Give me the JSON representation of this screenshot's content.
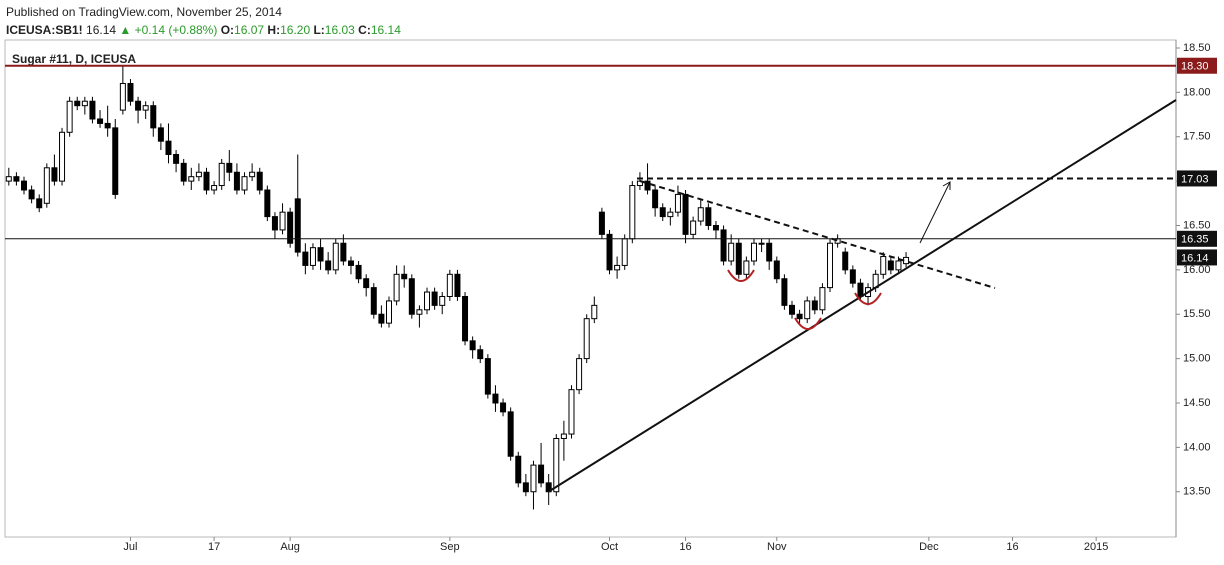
{
  "header": {
    "published": "Published on TradingView.com, November 25, 2014",
    "symbol": "ICEUSA:SB1!",
    "last": "16.14",
    "change": "+0.14 (+0.88%)",
    "open_key": "O:",
    "open": "16.07",
    "high_key": "H:",
    "high": "16.20",
    "low_key": "L:",
    "low": "16.03",
    "close_key": "C:",
    "close": "16.14"
  },
  "chart_data": {
    "type": "candlestick",
    "title": "Sugar #11, D, ICEUSA",
    "up_color": "#ffffff",
    "down_color": "#000000",
    "ylim": [
      12.99,
      18.59
    ],
    "yticks": [
      {
        "value": 13.5,
        "label": "13.50"
      },
      {
        "value": 14,
        "label": "14.00"
      },
      {
        "value": 14.5,
        "label": "14.50"
      },
      {
        "value": 15,
        "label": "15.00"
      },
      {
        "value": 15.5,
        "label": "15.50"
      },
      {
        "value": 16,
        "label": "16.00"
      },
      {
        "value": 16.5,
        "label": "16.50"
      },
      {
        "value": 17,
        "label": "17.00"
      },
      {
        "value": 17.5,
        "label": "17.50"
      },
      {
        "value": 18,
        "label": "18.00"
      },
      {
        "value": 18.5,
        "label": "18.50"
      }
    ],
    "levels": [
      {
        "value": 18.3,
        "label": "18.30",
        "color": "#8b1a1a",
        "line": "solid"
      },
      {
        "value": 17.03,
        "label": "17.03",
        "color": "#111111",
        "line": "dashed"
      },
      {
        "value": 16.35,
        "label": "16.35",
        "color": "#111111",
        "line": "solid"
      },
      {
        "value": 16.14,
        "label": "16.14",
        "color": "#111111",
        "line": "none"
      }
    ],
    "categories": [
      null,
      null,
      null,
      null,
      null,
      null,
      null,
      null,
      null,
      null,
      null,
      null,
      null,
      null,
      null,
      null,
      "Jul",
      null,
      null,
      null,
      null,
      null,
      null,
      null,
      null,
      null,
      null,
      "17",
      null,
      null,
      null,
      null,
      null,
      null,
      null,
      null,
      null,
      "Aug",
      null,
      null,
      null,
      null,
      null,
      null,
      null,
      null,
      null,
      null,
      null,
      null,
      null,
      null,
      null,
      null,
      null,
      null,
      null,
      null,
      "Sep",
      null,
      null,
      null,
      null,
      null,
      null,
      null,
      null,
      null,
      null,
      null,
      null,
      null,
      null,
      null,
      null,
      null,
      null,
      null,
      null,
      "Oct",
      null,
      null,
      null,
      null,
      null,
      null,
      null,
      null,
      null,
      "16",
      null,
      null,
      null,
      null,
      null,
      null,
      null,
      null,
      null,
      null,
      null,
      "Nov",
      null,
      null,
      null,
      null,
      null,
      null,
      null,
      null,
      null,
      null,
      null,
      null,
      null,
      null,
      null,
      null,
      null,
      null,
      null,
      "Dec",
      null,
      null,
      null,
      null,
      null,
      null,
      null,
      null,
      null,
      null,
      "16",
      null,
      null,
      null,
      null,
      null,
      null,
      null,
      null,
      null,
      null,
      "2015",
      null,
      null,
      null,
      null,
      null,
      null,
      null,
      null,
      null,
      null
    ],
    "ohlc": [
      [
        17.0,
        17.15,
        16.95,
        17.05
      ],
      [
        17.05,
        17.1,
        16.95,
        17.0
      ],
      [
        17.0,
        17.05,
        16.85,
        16.9
      ],
      [
        16.9,
        16.95,
        16.75,
        16.8
      ],
      [
        16.8,
        16.85,
        16.65,
        16.7
      ],
      [
        16.75,
        17.2,
        16.7,
        17.15
      ],
      [
        17.15,
        17.3,
        16.95,
        17.0
      ],
      [
        17.0,
        17.6,
        16.95,
        17.55
      ],
      [
        17.55,
        17.95,
        17.5,
        17.9
      ],
      [
        17.9,
        17.95,
        17.8,
        17.85
      ],
      [
        17.85,
        17.95,
        17.75,
        17.9
      ],
      [
        17.9,
        17.95,
        17.65,
        17.7
      ],
      [
        17.7,
        17.8,
        17.6,
        17.65
      ],
      [
        17.65,
        17.85,
        17.5,
        17.6
      ],
      [
        17.6,
        17.7,
        16.8,
        16.85
      ],
      [
        17.8,
        18.3,
        17.75,
        18.1
      ],
      [
        18.1,
        18.15,
        17.85,
        17.9
      ],
      [
        17.9,
        17.95,
        17.65,
        17.8
      ],
      [
        17.8,
        17.9,
        17.7,
        17.85
      ],
      [
        17.85,
        17.9,
        17.5,
        17.6
      ],
      [
        17.6,
        17.65,
        17.35,
        17.45
      ],
      [
        17.45,
        17.65,
        17.2,
        17.3
      ],
      [
        17.3,
        17.35,
        17.1,
        17.2
      ],
      [
        17.2,
        17.25,
        16.95,
        17.0
      ],
      [
        17.0,
        17.15,
        16.9,
        17.05
      ],
      [
        17.05,
        17.2,
        17.0,
        17.1
      ],
      [
        17.1,
        17.15,
        16.85,
        16.9
      ],
      [
        16.9,
        17.0,
        16.85,
        16.95
      ],
      [
        16.95,
        17.25,
        16.9,
        17.2
      ],
      [
        17.2,
        17.35,
        17.0,
        17.1
      ],
      [
        17.1,
        17.2,
        16.85,
        16.9
      ],
      [
        16.9,
        17.1,
        16.85,
        17.05
      ],
      [
        17.05,
        17.2,
        17.0,
        17.1
      ],
      [
        17.1,
        17.15,
        16.85,
        16.9
      ],
      [
        16.9,
        16.95,
        16.55,
        16.6
      ],
      [
        16.6,
        16.65,
        16.35,
        16.45
      ],
      [
        16.45,
        16.75,
        16.4,
        16.65
      ],
      [
        16.65,
        16.7,
        16.25,
        16.3
      ],
      [
        16.8,
        17.3,
        16.15,
        16.2
      ],
      [
        16.2,
        16.3,
        15.95,
        16.05
      ],
      [
        16.05,
        16.3,
        16.0,
        16.25
      ],
      [
        16.25,
        16.35,
        16.0,
        16.1
      ],
      [
        16.1,
        16.2,
        15.95,
        16.0
      ],
      [
        16.0,
        16.35,
        15.95,
        16.3
      ],
      [
        16.3,
        16.4,
        16.05,
        16.1
      ],
      [
        16.1,
        16.15,
        15.95,
        16.05
      ],
      [
        16.05,
        16.1,
        15.85,
        15.9
      ],
      [
        15.9,
        15.95,
        15.7,
        15.8
      ],
      [
        15.8,
        15.85,
        15.45,
        15.5
      ],
      [
        15.5,
        15.6,
        15.35,
        15.4
      ],
      [
        15.4,
        15.7,
        15.35,
        15.65
      ],
      [
        15.65,
        16.05,
        15.6,
        15.95
      ],
      [
        15.95,
        16.05,
        15.8,
        15.9
      ],
      [
        15.9,
        15.95,
        15.45,
        15.5
      ],
      [
        15.5,
        15.6,
        15.35,
        15.55
      ],
      [
        15.55,
        15.8,
        15.5,
        15.75
      ],
      [
        15.75,
        15.8,
        15.55,
        15.6
      ],
      [
        15.6,
        15.75,
        15.5,
        15.7
      ],
      [
        15.7,
        16.0,
        15.65,
        15.95
      ],
      [
        15.95,
        16.0,
        15.65,
        15.7
      ],
      [
        15.7,
        15.75,
        15.15,
        15.2
      ],
      [
        15.2,
        15.25,
        15.0,
        15.1
      ],
      [
        15.1,
        15.15,
        14.95,
        15.0
      ],
      [
        15.0,
        15.05,
        14.55,
        14.6
      ],
      [
        14.6,
        14.7,
        14.4,
        14.5
      ],
      [
        14.5,
        14.55,
        14.35,
        14.4
      ],
      [
        14.4,
        14.45,
        13.85,
        13.9
      ],
      [
        13.9,
        13.95,
        13.55,
        13.6
      ],
      [
        13.6,
        13.7,
        13.45,
        13.5
      ],
      [
        13.5,
        13.85,
        13.3,
        13.8
      ],
      [
        13.8,
        14.05,
        13.55,
        13.6
      ],
      [
        13.6,
        13.7,
        13.35,
        13.5
      ],
      [
        13.5,
        14.15,
        13.45,
        14.1
      ],
      [
        14.1,
        14.3,
        13.85,
        14.15
      ],
      [
        14.15,
        14.7,
        14.1,
        14.65
      ],
      [
        14.65,
        15.05,
        14.6,
        15.0
      ],
      [
        15.0,
        15.5,
        14.95,
        15.45
      ],
      [
        15.45,
        15.7,
        15.4,
        15.6
      ],
      [
        16.65,
        16.7,
        16.35,
        16.4
      ],
      [
        16.4,
        16.45,
        15.95,
        16.0
      ],
      [
        16.0,
        16.15,
        15.9,
        16.05
      ],
      [
        16.05,
        16.4,
        16.0,
        16.35
      ],
      [
        16.35,
        17.0,
        16.3,
        16.95
      ],
      [
        16.95,
        17.1,
        16.9,
        17.0
      ],
      [
        17.0,
        17.2,
        16.85,
        16.9
      ],
      [
        16.9,
        16.95,
        16.6,
        16.7
      ],
      [
        16.7,
        16.75,
        16.55,
        16.6
      ],
      [
        16.6,
        16.7,
        16.5,
        16.65
      ],
      [
        16.65,
        16.95,
        16.6,
        16.85
      ],
      [
        16.85,
        16.9,
        16.3,
        16.4
      ],
      [
        16.4,
        16.6,
        16.35,
        16.55
      ],
      [
        16.55,
        16.8,
        16.5,
        16.7
      ],
      [
        16.7,
        16.75,
        16.45,
        16.5
      ],
      [
        16.5,
        16.55,
        16.35,
        16.45
      ],
      [
        16.45,
        16.5,
        16.05,
        16.1
      ],
      [
        16.1,
        16.4,
        16.05,
        16.3
      ],
      [
        16.3,
        16.35,
        15.9,
        15.95
      ],
      [
        15.95,
        16.15,
        15.9,
        16.1
      ],
      [
        16.1,
        16.35,
        16.05,
        16.3
      ],
      [
        16.3,
        16.35,
        16.2,
        16.3
      ],
      [
        16.3,
        16.35,
        16.0,
        16.1
      ],
      [
        16.1,
        16.15,
        15.85,
        15.9
      ],
      [
        15.9,
        15.95,
        15.55,
        15.6
      ],
      [
        15.6,
        15.65,
        15.45,
        15.5
      ],
      [
        15.5,
        15.55,
        15.4,
        15.45
      ],
      [
        15.45,
        15.7,
        15.4,
        15.65
      ],
      [
        15.65,
        15.7,
        15.5,
        15.55
      ],
      [
        15.55,
        15.85,
        15.5,
        15.8
      ],
      [
        15.8,
        16.35,
        15.75,
        16.3
      ],
      [
        16.3,
        16.4,
        16.25,
        16.35
      ],
      [
        16.2,
        16.25,
        15.95,
        16.0
      ],
      [
        16.0,
        16.05,
        15.8,
        15.85
      ],
      [
        15.85,
        15.9,
        15.65,
        15.7
      ],
      [
        15.7,
        15.85,
        15.6,
        15.8
      ],
      [
        15.8,
        16.0,
        15.75,
        15.95
      ],
      [
        15.95,
        16.2,
        15.9,
        16.15
      ],
      [
        16.1,
        16.15,
        15.95,
        16.0
      ],
      [
        16.0,
        16.15,
        15.95,
        16.1
      ],
      [
        16.07,
        16.2,
        16.03,
        16.14
      ],
      null,
      null,
      null,
      null,
      null,
      null,
      null,
      null,
      null,
      null,
      null,
      null,
      null,
      null,
      null,
      null,
      null,
      null,
      null,
      null,
      null,
      null,
      null,
      null,
      null,
      null,
      null,
      null,
      null,
      null,
      null,
      null,
      null,
      null,
      null
    ]
  }
}
